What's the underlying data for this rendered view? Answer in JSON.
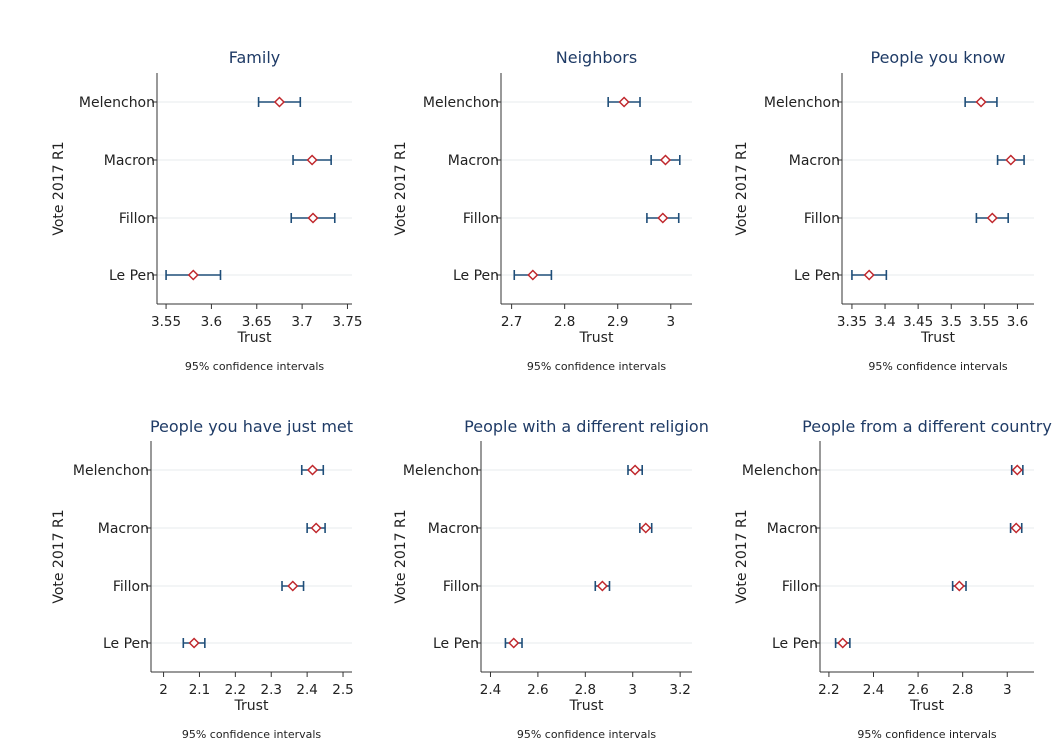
{
  "chart_data": [
    {
      "type": "scatter",
      "title": "Family",
      "xlabel": "Trust",
      "ylabel": "Vote 2017 R1",
      "note": "95% confidence intervals",
      "categories": [
        "Melenchon",
        "Macron",
        "Fillon",
        "Le Pen"
      ],
      "estimates": [
        3.675,
        3.711,
        3.712,
        3.58
      ],
      "ci_low": [
        3.652,
        3.69,
        3.688,
        3.55
      ],
      "ci_high": [
        3.698,
        3.732,
        3.736,
        3.61
      ],
      "xlim": [
        3.54,
        3.755
      ],
      "xticks": [
        "3.55",
        "3.6",
        "3.65",
        "3.7",
        "3.75"
      ]
    },
    {
      "type": "scatter",
      "title": "Neighbors",
      "xlabel": "Trust",
      "ylabel": "Vote 2017 R1",
      "note": "95% confidence intervals",
      "categories": [
        "Melenchon",
        "Macron",
        "Fillon",
        "Le Pen"
      ],
      "estimates": [
        2.912,
        2.99,
        2.985,
        2.74
      ],
      "ci_low": [
        2.882,
        2.963,
        2.955,
        2.705
      ],
      "ci_high": [
        2.942,
        3.017,
        3.015,
        2.775
      ],
      "xlim": [
        2.68,
        3.04
      ],
      "xticks": [
        "2.7",
        "2.8",
        "2.9",
        "3"
      ]
    },
    {
      "type": "scatter",
      "title": "People you know",
      "xlabel": "Trust",
      "ylabel": "Vote 2017 R1",
      "note": "95% confidence intervals",
      "categories": [
        "Melenchon",
        "Macron",
        "Fillon",
        "Le Pen"
      ],
      "estimates": [
        3.545,
        3.59,
        3.562,
        3.376
      ],
      "ci_low": [
        3.521,
        3.57,
        3.538,
        3.35
      ],
      "ci_high": [
        3.569,
        3.61,
        3.586,
        3.402
      ],
      "xlim": [
        3.335,
        3.625
      ],
      "xticks": [
        "3.35",
        "3.4",
        "3.45",
        "3.5",
        "3.55",
        "3.6"
      ]
    },
    {
      "type": "scatter",
      "title": "People you have just met",
      "xlabel": "Trust",
      "ylabel": "Vote 2017 R1",
      "note": "95% confidence intervals",
      "categories": [
        "Melenchon",
        "Macron",
        "Fillon",
        "Le Pen"
      ],
      "estimates": [
        2.415,
        2.425,
        2.36,
        2.085
      ],
      "ci_low": [
        2.385,
        2.4,
        2.33,
        2.055
      ],
      "ci_high": [
        2.445,
        2.45,
        2.39,
        2.115
      ],
      "xlim": [
        1.965,
        2.525
      ],
      "xticks": [
        "2",
        "2.1",
        "2.2",
        "2.3",
        "2.4",
        "2.5"
      ]
    },
    {
      "type": "scatter",
      "title": "People with a different religion",
      "xlabel": "Trust",
      "ylabel": "Vote 2017 R1",
      "note": "95% confidence intervals",
      "categories": [
        "Melenchon",
        "Macron",
        "Fillon",
        "Le Pen"
      ],
      "estimates": [
        3.01,
        3.055,
        2.872,
        2.498
      ],
      "ci_low": [
        2.98,
        3.03,
        2.842,
        2.463
      ],
      "ci_high": [
        3.04,
        3.08,
        2.902,
        2.533
      ],
      "xlim": [
        2.36,
        3.25
      ],
      "xticks": [
        "2.4",
        "2.6",
        "2.8",
        "3",
        "3.2"
      ]
    },
    {
      "type": "scatter",
      "title": "People from a different country",
      "xlabel": "Trust",
      "ylabel": "Vote 2017 R1",
      "note": "95% confidence intervals",
      "categories": [
        "Melenchon",
        "Macron",
        "Fillon",
        "Le Pen"
      ],
      "estimates": [
        3.045,
        3.04,
        2.785,
        2.262
      ],
      "ci_low": [
        3.02,
        3.015,
        2.755,
        2.23
      ],
      "ci_high": [
        3.07,
        3.065,
        2.815,
        2.294
      ],
      "xlim": [
        2.16,
        3.12
      ],
      "xticks": [
        "2.2",
        "2.4",
        "2.6",
        "2.8",
        "3"
      ]
    }
  ],
  "colors": {
    "title": "#1f3b66",
    "ci_line": "#1f4e79",
    "marker": "#c0282d",
    "grid": "#e7ebee"
  }
}
